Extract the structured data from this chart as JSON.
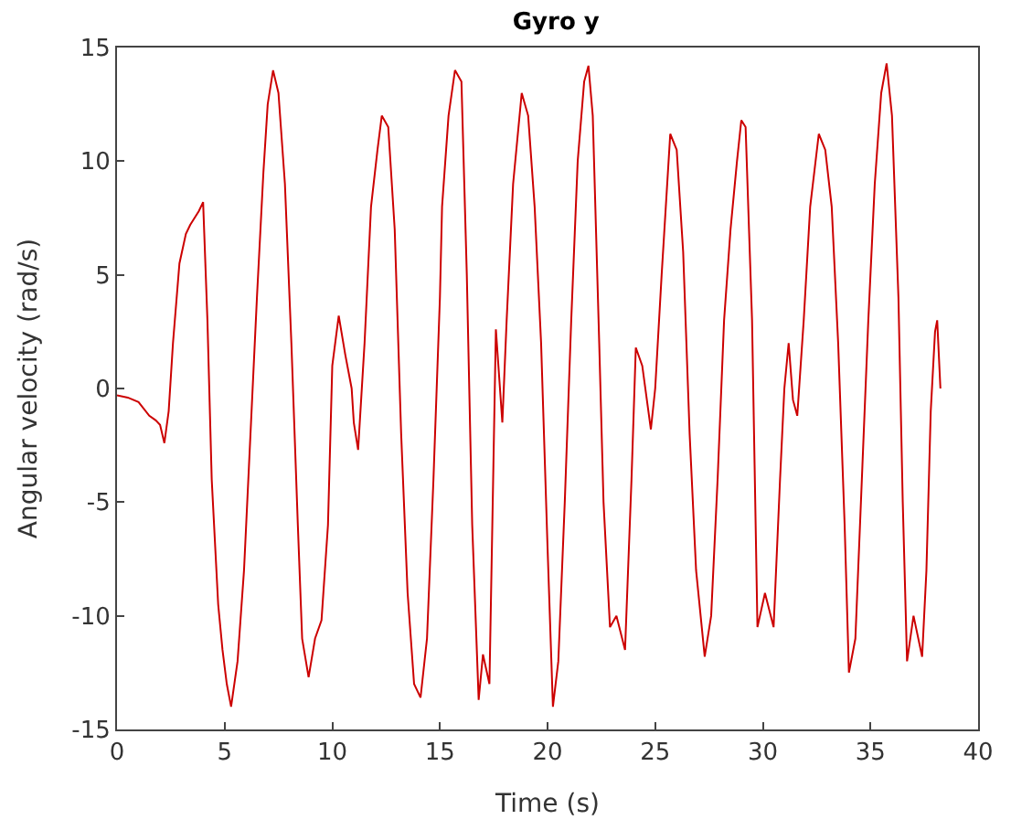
{
  "chart_data": {
    "type": "line",
    "title": "Gyro y",
    "xlabel": "Time (s)",
    "ylabel": "Angular velocity (rad/s)",
    "xlim": [
      0,
      40
    ],
    "ylim": [
      -15,
      15
    ],
    "xticks": [
      0,
      5,
      10,
      15,
      20,
      25,
      30,
      35,
      40
    ],
    "yticks": [
      -15,
      -10,
      -5,
      0,
      5,
      10,
      15
    ],
    "legend": false,
    "marker": "none",
    "line_style": "solid",
    "series": [
      {
        "color": "#cc0000",
        "x": [
          0,
          0.5,
          1.0,
          1.5,
          1.8,
          2.0,
          2.2,
          2.4,
          2.6,
          2.9,
          3.2,
          3.4,
          3.6,
          3.8,
          4.0,
          4.2,
          4.4,
          4.7,
          4.9,
          5.1,
          5.3,
          5.6,
          5.9,
          6.2,
          6.5,
          6.8,
          7.0,
          7.25,
          7.5,
          7.8,
          8.1,
          8.4,
          8.6,
          8.9,
          9.2,
          9.5,
          9.8,
          10.0,
          10.3,
          10.6,
          10.9,
          11.0,
          11.2,
          11.5,
          11.8,
          12.1,
          12.3,
          12.6,
          12.9,
          13.2,
          13.5,
          13.8,
          14.1,
          14.4,
          14.7,
          15.0,
          15.1,
          15.4,
          15.7,
          16.0,
          16.25,
          16.5,
          16.8,
          17.0,
          17.3,
          17.6,
          17.9,
          18.1,
          18.4,
          18.8,
          19.1,
          19.4,
          19.7,
          20.0,
          20.25,
          20.5,
          20.8,
          21.1,
          21.4,
          21.7,
          21.9,
          22.1,
          22.4,
          22.6,
          22.9,
          23.2,
          23.6,
          23.9,
          24.1,
          24.4,
          24.8,
          25.0,
          25.3,
          25.7,
          26.0,
          26.3,
          26.6,
          26.9,
          27.3,
          27.6,
          27.9,
          28.2,
          28.5,
          28.8,
          29.0,
          29.2,
          29.5,
          29.75,
          30.1,
          30.5,
          30.8,
          31.0,
          31.2,
          31.4,
          31.6,
          31.9,
          32.2,
          32.6,
          32.9,
          33.2,
          33.5,
          33.8,
          34.0,
          34.3,
          34.6,
          34.9,
          35.2,
          35.5,
          35.75,
          36.0,
          36.3,
          36.5,
          36.7,
          37.0,
          37.4,
          37.6,
          37.8,
          38.0,
          38.1,
          38.25
        ],
        "values": [
          -0.3,
          -0.4,
          -0.6,
          -1.2,
          -1.4,
          -1.6,
          -2.4,
          -1.0,
          2.0,
          5.5,
          6.8,
          7.2,
          7.5,
          7.8,
          8.2,
          3.0,
          -4.0,
          -9.5,
          -11.5,
          -13.0,
          -14.0,
          -12.0,
          -8.0,
          -2.0,
          4.0,
          9.5,
          12.5,
          14.0,
          13.0,
          9.0,
          2.0,
          -6.0,
          -11.0,
          -12.7,
          -11.0,
          -10.2,
          -6.0,
          1.0,
          3.2,
          1.5,
          0.0,
          -1.5,
          -2.7,
          2.0,
          8.0,
          10.5,
          12.0,
          11.5,
          7.0,
          -2.0,
          -9.0,
          -13.0,
          -13.6,
          -11.0,
          -4.0,
          4.0,
          8.0,
          12.0,
          14.0,
          13.5,
          5.0,
          -6.0,
          -13.7,
          -11.7,
          -13.0,
          2.6,
          -1.5,
          3.0,
          9.0,
          13.0,
          12.0,
          8.0,
          2.0,
          -7.0,
          -14.0,
          -12.0,
          -5.0,
          3.0,
          10.0,
          13.5,
          14.2,
          12.0,
          2.0,
          -5.0,
          -10.5,
          -10.0,
          -11.5,
          -4.0,
          1.8,
          1.0,
          -1.8,
          0.0,
          5.0,
          11.2,
          10.5,
          6.0,
          -2.0,
          -8.0,
          -11.8,
          -10.0,
          -4.0,
          3.0,
          7.0,
          10.0,
          11.8,
          11.5,
          3.0,
          -10.5,
          -9.0,
          -10.5,
          -4.0,
          0.0,
          2.0,
          -0.5,
          -1.2,
          3.0,
          8.0,
          11.2,
          10.5,
          8.0,
          2.0,
          -6.0,
          -12.5,
          -11.0,
          -4.0,
          3.0,
          9.0,
          13.0,
          14.3,
          12.0,
          4.0,
          -5.0,
          -12.0,
          -10.0,
          -11.8,
          -8.0,
          -1.0,
          2.5,
          3.0,
          0.0
        ]
      }
    ]
  }
}
